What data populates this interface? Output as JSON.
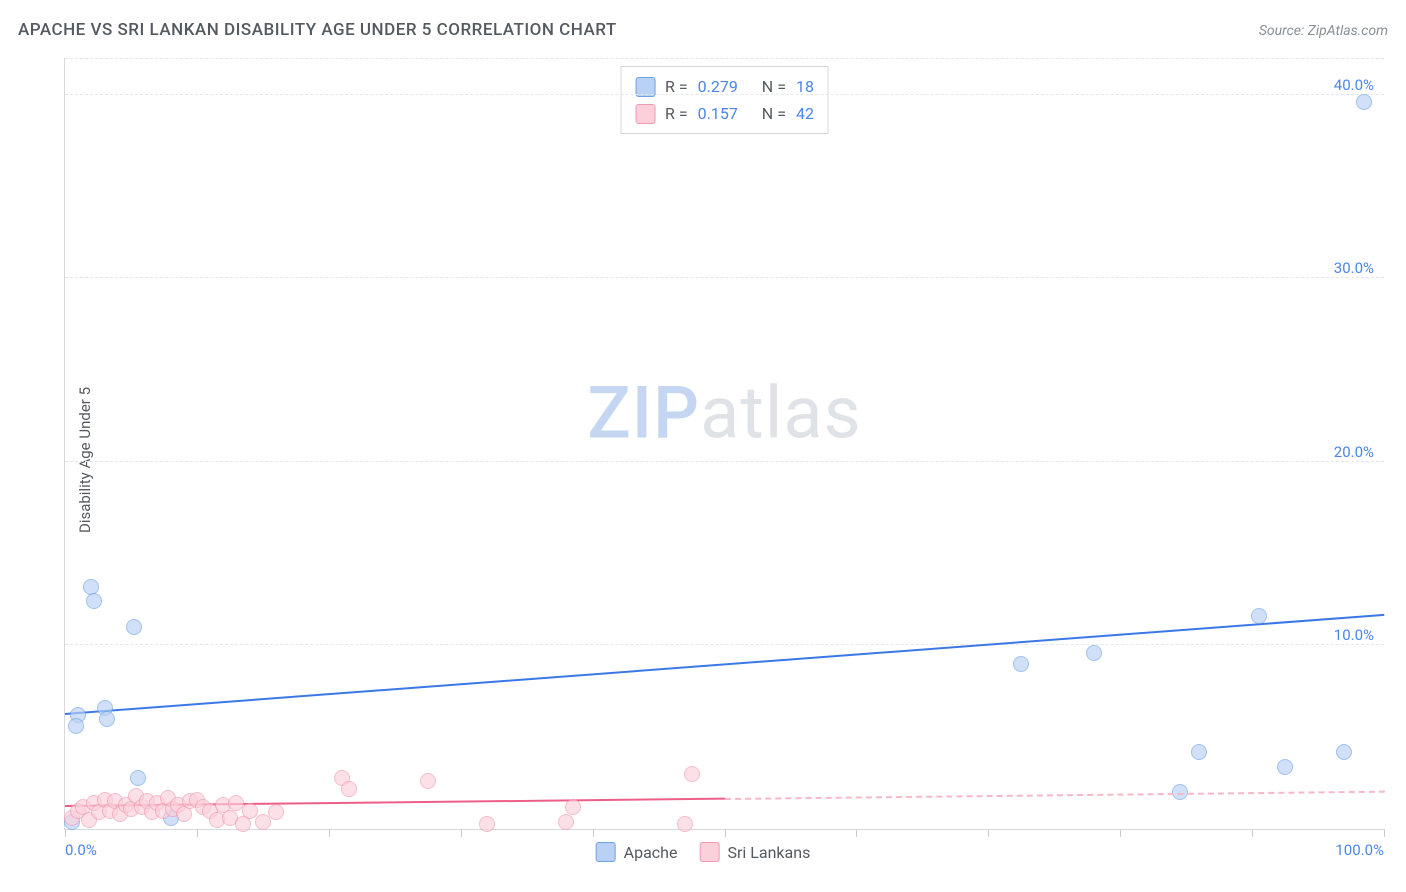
{
  "title": "APACHE VS SRI LANKAN DISABILITY AGE UNDER 5 CORRELATION CHART",
  "source_label": "Source: ZipAtlas.com",
  "ylabel": "Disability Age Under 5",
  "watermark_a": "ZIP",
  "watermark_b": "atlas",
  "chart": {
    "type": "scatter",
    "background_color": "#ffffff",
    "grid_color": "#e4e7ea",
    "axis_color": "#d5d9de",
    "tick_label_color": "#4a86e8",
    "xlim": [
      0,
      100
    ],
    "ylim": [
      0,
      42
    ],
    "yticks": [
      10,
      20,
      30,
      40
    ],
    "ytick_labels": [
      "10.0%",
      "20.0%",
      "30.0%",
      "40.0%"
    ],
    "xticks": [
      0,
      10,
      20,
      30,
      40,
      50,
      60,
      70,
      80,
      90,
      100
    ],
    "xtick_labels_shown": {
      "0": "0.0%",
      "100": "100.0%"
    },
    "series": [
      {
        "name": "Apache",
        "color_fill": "#b8d1f5",
        "color_stroke": "#6fa1e6",
        "marker_size": 16,
        "marker_opacity": 0.65,
        "R": "0.279",
        "N": "18",
        "trend": {
          "x1": 0,
          "y1": 6.2,
          "x2": 100,
          "y2": 11.6,
          "color": "#3b78e7",
          "width": 2
        },
        "points": [
          {
            "x": 1.0,
            "y": 6.2
          },
          {
            "x": 0.8,
            "y": 5.6
          },
          {
            "x": 0.5,
            "y": 0.4
          },
          {
            "x": 2.0,
            "y": 13.2
          },
          {
            "x": 2.2,
            "y": 12.4
          },
          {
            "x": 3.0,
            "y": 6.6
          },
          {
            "x": 3.2,
            "y": 6.0
          },
          {
            "x": 5.2,
            "y": 11.0
          },
          {
            "x": 5.5,
            "y": 2.8
          },
          {
            "x": 8.0,
            "y": 0.6
          },
          {
            "x": 72.5,
            "y": 9.0
          },
          {
            "x": 78.0,
            "y": 9.6
          },
          {
            "x": 84.5,
            "y": 2.0
          },
          {
            "x": 86.0,
            "y": 4.2
          },
          {
            "x": 90.5,
            "y": 11.6
          },
          {
            "x": 92.5,
            "y": 3.4
          },
          {
            "x": 97.0,
            "y": 4.2
          },
          {
            "x": 98.5,
            "y": 39.6
          }
        ]
      },
      {
        "name": "Sri Lankans",
        "color_fill": "#fbd0db",
        "color_stroke": "#f19ab1",
        "marker_size": 16,
        "marker_opacity": 0.65,
        "R": "0.157",
        "N": "42",
        "trend_solid": {
          "x1": 0,
          "y1": 1.2,
          "x2": 50,
          "y2": 1.6,
          "color": "#ec5f89",
          "width": 2
        },
        "trend_dashed": {
          "x1": 50,
          "y1": 1.6,
          "x2": 100,
          "y2": 2.0,
          "color": "#f6b8c8",
          "width": 2
        },
        "points": [
          {
            "x": 0.5,
            "y": 0.6
          },
          {
            "x": 1.0,
            "y": 1.0
          },
          {
            "x": 1.4,
            "y": 1.2
          },
          {
            "x": 1.8,
            "y": 0.5
          },
          {
            "x": 2.2,
            "y": 1.4
          },
          {
            "x": 2.6,
            "y": 0.9
          },
          {
            "x": 3.0,
            "y": 1.6
          },
          {
            "x": 3.4,
            "y": 1.0
          },
          {
            "x": 3.8,
            "y": 1.5
          },
          {
            "x": 4.2,
            "y": 0.8
          },
          {
            "x": 4.6,
            "y": 1.3
          },
          {
            "x": 5.0,
            "y": 1.1
          },
          {
            "x": 5.4,
            "y": 1.8
          },
          {
            "x": 5.8,
            "y": 1.2
          },
          {
            "x": 6.2,
            "y": 1.5
          },
          {
            "x": 6.6,
            "y": 0.9
          },
          {
            "x": 7.0,
            "y": 1.4
          },
          {
            "x": 7.4,
            "y": 1.0
          },
          {
            "x": 7.8,
            "y": 1.7
          },
          {
            "x": 8.2,
            "y": 1.1
          },
          {
            "x": 8.6,
            "y": 1.3
          },
          {
            "x": 9.0,
            "y": 0.8
          },
          {
            "x": 9.5,
            "y": 1.5
          },
          {
            "x": 10.0,
            "y": 1.6
          },
          {
            "x": 10.5,
            "y": 1.2
          },
          {
            "x": 11.0,
            "y": 1.0
          },
          {
            "x": 11.5,
            "y": 0.5
          },
          {
            "x": 12.0,
            "y": 1.3
          },
          {
            "x": 12.5,
            "y": 0.6
          },
          {
            "x": 13.0,
            "y": 1.4
          },
          {
            "x": 13.5,
            "y": 0.3
          },
          {
            "x": 14.0,
            "y": 1.0
          },
          {
            "x": 15.0,
            "y": 0.4
          },
          {
            "x": 16.0,
            "y": 0.9
          },
          {
            "x": 21.0,
            "y": 2.8
          },
          {
            "x": 21.5,
            "y": 2.2
          },
          {
            "x": 27.5,
            "y": 2.6
          },
          {
            "x": 32.0,
            "y": 0.3
          },
          {
            "x": 38.0,
            "y": 0.4
          },
          {
            "x": 38.5,
            "y": 1.2
          },
          {
            "x": 47.5,
            "y": 3.0
          },
          {
            "x": 47.0,
            "y": 0.3
          }
        ]
      }
    ]
  },
  "legend_top": {
    "r_prefix": "R =",
    "n_prefix": "N ="
  },
  "legend_bottom_labels": [
    "Apache",
    "Sri Lankans"
  ]
}
